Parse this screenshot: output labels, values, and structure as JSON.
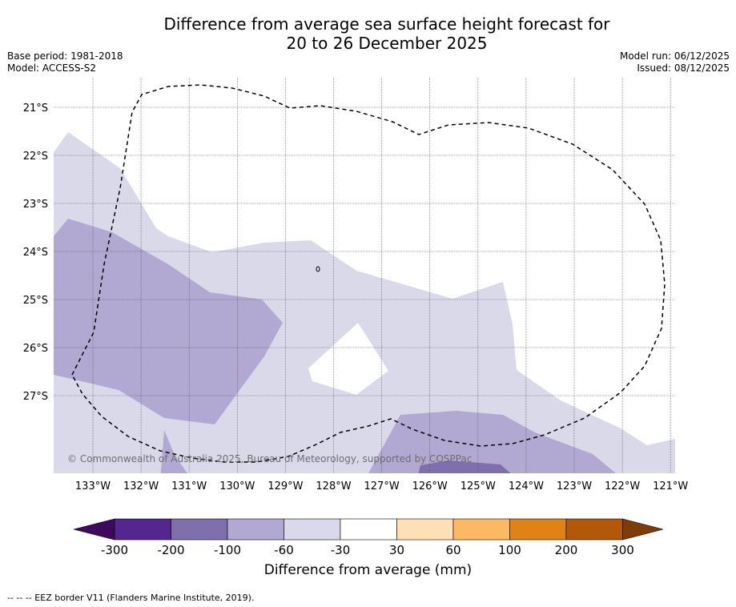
{
  "title": {
    "line1": "Difference from average sea surface height forecast for",
    "line2": "20 to 26 December 2025"
  },
  "meta": {
    "base_period": "Base period: 1981-2018",
    "model": "Model: ACCESS-S2",
    "model_run": "Model run: 06/12/2025",
    "issued": "Issued: 08/12/2025"
  },
  "map": {
    "lon_labels": [
      "133°W",
      "132°W",
      "131°W",
      "130°W",
      "129°W",
      "128°W",
      "127°W",
      "126°W",
      "125°W",
      "124°W",
      "123°W",
      "122°W",
      "121°W"
    ],
    "lat_labels": [
      "21°S",
      "22°S",
      "23°S",
      "24°S",
      "25°S",
      "26°S",
      "27°S"
    ],
    "copyright": "© Commonwealth of Australia 2025, Bureau of Meteorology, supported by COSPPac"
  },
  "colorbar": {
    "title": "Difference from average (mm)",
    "tick_labels": [
      "-300",
      "-200",
      "-100",
      "-60",
      "-30",
      "30",
      "60",
      "100",
      "200",
      "300"
    ],
    "colors": [
      "#3f0a5c",
      "#54278f",
      "#7f70ad",
      "#b1a9d2",
      "#d9d9ea",
      "#ffffff",
      "#fee0b6",
      "#fdb863",
      "#e08214",
      "#b35806",
      "#7f3b08"
    ]
  },
  "footnote": "--  --  -- EEZ border V11 (Flanders Marine Institute, 2019)."
}
